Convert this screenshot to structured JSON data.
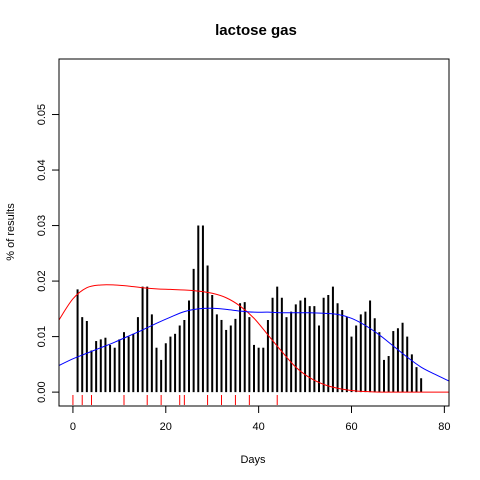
{
  "chart_data": {
    "type": "bar",
    "title": "lactose gas",
    "xlabel": "Days",
    "ylabel": "% of results",
    "xlim": [
      -3,
      81
    ],
    "ylim": [
      -0.0025,
      0.06
    ],
    "x_ticks": [
      0,
      20,
      40,
      60,
      80
    ],
    "x_tick_labels": [
      "0",
      "20",
      "40",
      "60",
      "80"
    ],
    "y_ticks": [
      0.0,
      0.01,
      0.02,
      0.03,
      0.04,
      0.05
    ],
    "y_tick_labels": [
      "0.00",
      "0.01",
      "0.02",
      "0.03",
      "0.04",
      "0.05"
    ],
    "grid": false,
    "bars": {
      "x": [
        1,
        2,
        3,
        4,
        5,
        6,
        7,
        8,
        9,
        10,
        11,
        12,
        13,
        14,
        15,
        16,
        17,
        18,
        19,
        20,
        21,
        22,
        23,
        24,
        25,
        26,
        27,
        28,
        29,
        30,
        31,
        32,
        33,
        34,
        35,
        36,
        37,
        38,
        39,
        40,
        41,
        42,
        43,
        44,
        45,
        46,
        47,
        48,
        49,
        50,
        51,
        52,
        53,
        54,
        55,
        56,
        57,
        58,
        59,
        60,
        61,
        62,
        63,
        64,
        65,
        66,
        67,
        68,
        69,
        70,
        71,
        72,
        73,
        74,
        75
      ],
      "values": [
        0.0185,
        0.0135,
        0.0128,
        0.0075,
        0.0092,
        0.0095,
        0.0098,
        0.0085,
        0.008,
        0.0095,
        0.0108,
        0.01,
        0.0105,
        0.0135,
        0.019,
        0.019,
        0.014,
        0.008,
        0.0058,
        0.0088,
        0.01,
        0.0105,
        0.012,
        0.013,
        0.0165,
        0.0222,
        0.03,
        0.03,
        0.0228,
        0.0175,
        0.014,
        0.013,
        0.0112,
        0.012,
        0.0132,
        0.016,
        0.0162,
        0.0135,
        0.0085,
        0.008,
        0.008,
        0.013,
        0.017,
        0.019,
        0.017,
        0.0135,
        0.0145,
        0.0158,
        0.0165,
        0.017,
        0.0155,
        0.0155,
        0.012,
        0.017,
        0.0175,
        0.019,
        0.016,
        0.0148,
        0.0135,
        0.01,
        0.012,
        0.014,
        0.0145,
        0.0165,
        0.0133,
        0.0108,
        0.0058,
        0.0065,
        0.011,
        0.0115,
        0.0125,
        0.01,
        0.0068,
        0.0045,
        0.0025
      ]
    },
    "series": [
      {
        "color": "#ff0000",
        "x": [
          -3,
          0,
          3,
          6,
          9,
          12,
          15,
          18,
          21,
          24,
          27,
          30,
          33,
          36,
          39,
          42,
          45,
          48,
          51,
          54,
          57,
          60,
          63,
          66,
          69,
          72,
          75,
          78,
          81
        ],
        "values": [
          0.013,
          0.0168,
          0.0188,
          0.0193,
          0.0193,
          0.0191,
          0.0188,
          0.0186,
          0.0185,
          0.0184,
          0.0182,
          0.0178,
          0.017,
          0.0155,
          0.0133,
          0.0103,
          0.0073,
          0.0045,
          0.0026,
          0.0014,
          0.0007,
          0.0003,
          0.0001,
          0.0,
          0.0,
          0.0,
          0.0,
          0.0,
          0.0
        ]
      },
      {
        "color": "#0000ff",
        "x": [
          -3,
          0,
          3,
          6,
          9,
          12,
          15,
          18,
          21,
          24,
          27,
          30,
          33,
          36,
          39,
          42,
          45,
          48,
          51,
          54,
          57,
          60,
          63,
          66,
          69,
          72,
          75,
          78,
          81
        ],
        "values": [
          0.0048,
          0.006,
          0.007,
          0.008,
          0.009,
          0.0101,
          0.0112,
          0.0124,
          0.0135,
          0.0145,
          0.015,
          0.0151,
          0.0149,
          0.0146,
          0.0144,
          0.0144,
          0.0143,
          0.0143,
          0.0143,
          0.0142,
          0.014,
          0.0133,
          0.012,
          0.0103,
          0.0083,
          0.0063,
          0.0045,
          0.0032,
          0.002
        ]
      }
    ],
    "rug": {
      "color": "#ff0000",
      "x": [
        0,
        2,
        4,
        11,
        16,
        19,
        23,
        24,
        29,
        32,
        35,
        38,
        44
      ]
    }
  }
}
